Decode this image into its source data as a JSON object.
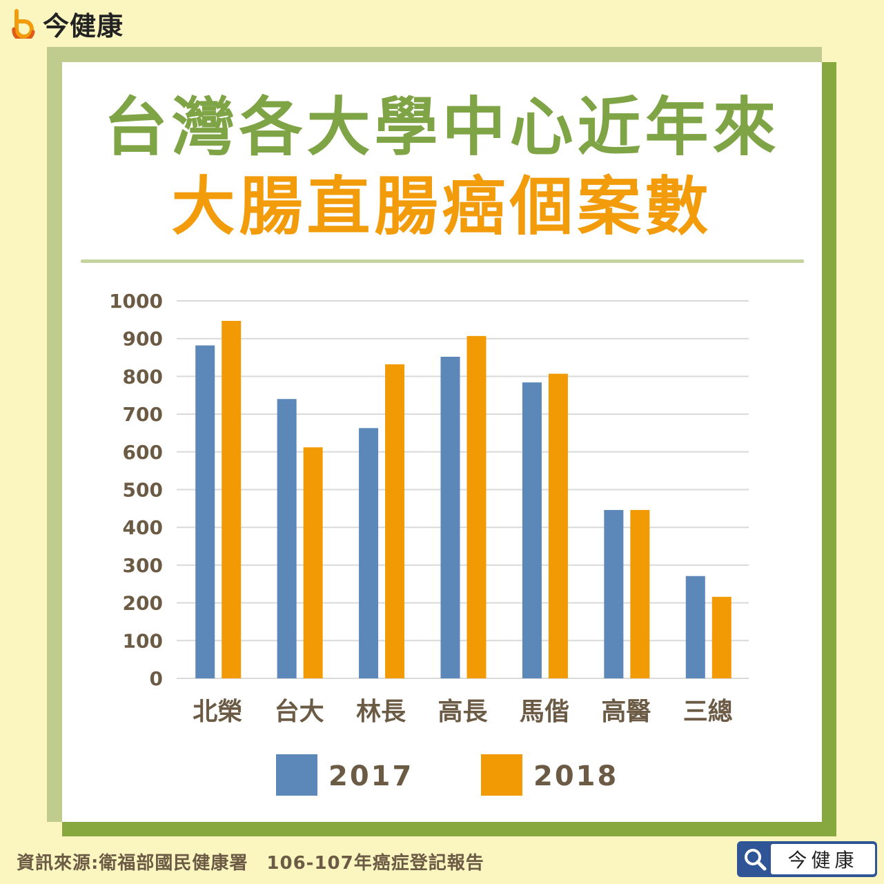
{
  "brand": {
    "name": "今健康"
  },
  "title": {
    "line1": "台灣各大學中心近年來",
    "line2": "大腸直腸癌個案數"
  },
  "colors": {
    "series_2017": "#5b87b9",
    "series_2018": "#f29a03",
    "title_green": "#7ea445",
    "title_orange": "#f29b0b"
  },
  "chart_data": {
    "type": "bar",
    "categories": [
      "北榮",
      "台大",
      "林長",
      "高長",
      "馬偕",
      "高醫",
      "三總"
    ],
    "series": [
      {
        "name": "2017",
        "values": [
          882,
          740,
          663,
          852,
          784,
          446,
          271
        ]
      },
      {
        "name": "2018",
        "values": [
          947,
          612,
          832,
          907,
          807,
          446,
          216
        ]
      }
    ],
    "y_ticks": [
      "0",
      "100",
      "200",
      "300",
      "400",
      "500",
      "600",
      "700",
      "800",
      "900",
      "1000"
    ],
    "ylim": [
      0,
      1000
    ],
    "grid": true,
    "legend": "bottom"
  },
  "footer": {
    "source": "資訊來源:衛福部國民健康署　106-107年癌症登記報告",
    "search_text": "今健康",
    "search_icon": "search-icon"
  }
}
